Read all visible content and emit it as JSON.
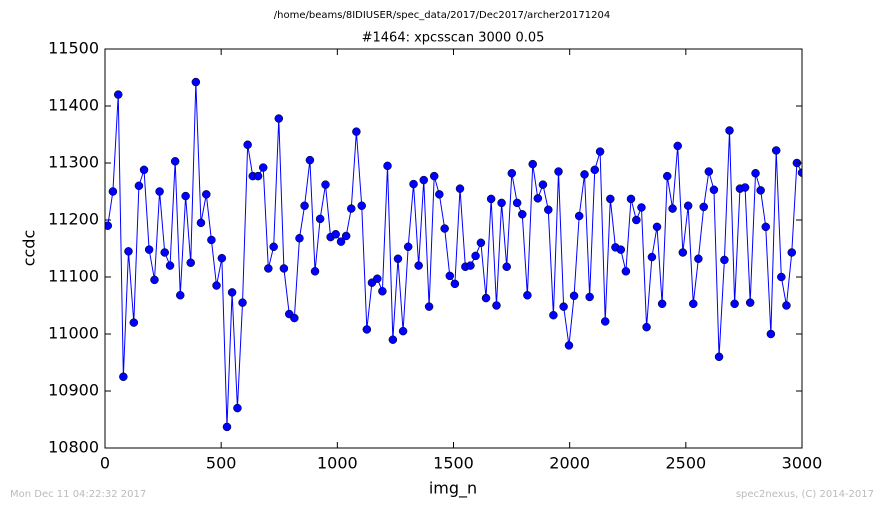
{
  "chart_data": {
    "type": "line",
    "suptitle": "/home/beams/8IDIUSER/spec_data/2017/Dec2017/archer20171204",
    "title": "#1464: xpcsscan 3000 0.05",
    "xlabel": "img_n",
    "ylabel": "ccdc",
    "footer_left": "Mon Dec 11 04:22:32 2017",
    "footer_right": "spec2nexus, (C) 2014-2017",
    "xlim": [
      0,
      3000
    ],
    "xticks": [
      0,
      500,
      1000,
      1500,
      2000,
      2500,
      3000
    ],
    "ylim": [
      10800,
      11500
    ],
    "yticks": [
      10800,
      10900,
      11000,
      11100,
      11200,
      11300,
      11400,
      11500
    ],
    "x": [
      12,
      34,
      57,
      79,
      101,
      124,
      146,
      168,
      190,
      213,
      235,
      257,
      280,
      302,
      324,
      347,
      369,
      391,
      413,
      436,
      458,
      480,
      503,
      525,
      547,
      570,
      592,
      614,
      636,
      659,
      681,
      703,
      726,
      748,
      770,
      793,
      815,
      837,
      859,
      882,
      904,
      926,
      949,
      971,
      993,
      1016,
      1038,
      1060,
      1082,
      1105,
      1127,
      1149,
      1172,
      1194,
      1216,
      1239,
      1261,
      1283,
      1305,
      1328,
      1350,
      1372,
      1395,
      1417,
      1439,
      1462,
      1484,
      1506,
      1528,
      1551,
      1573,
      1595,
      1618,
      1640,
      1662,
      1685,
      1707,
      1729,
      1751,
      1774,
      1796,
      1818,
      1841,
      1863,
      1885,
      1908,
      1930,
      1952,
      1974,
      1997,
      2019,
      2041,
      2064,
      2086,
      2108,
      2131,
      2153,
      2175,
      2197,
      2220,
      2242,
      2264,
      2287,
      2309,
      2331,
      2354,
      2376,
      2398,
      2420,
      2443,
      2465,
      2487,
      2510,
      2532,
      2554,
      2577,
      2599,
      2621,
      2643,
      2666,
      2688,
      2710,
      2733,
      2755,
      2777,
      2800,
      2822,
      2844,
      2866,
      2889,
      2911,
      2933,
      2956,
      2978,
      3000
    ],
    "series": [
      {
        "color": "#0000ff",
        "values": [
          11190,
          11250,
          11420,
          10925,
          11145,
          11020,
          11260,
          11288,
          11148,
          11095,
          11250,
          11143,
          11120,
          11303,
          11068,
          11242,
          11125,
          11442,
          11195,
          11245,
          11165,
          11085,
          11133,
          10837,
          11073,
          10870,
          11055,
          11332,
          11277,
          11277,
          11292,
          11115,
          11153,
          11378,
          11115,
          11035,
          11028,
          11168,
          11225,
          11305,
          11110,
          11202,
          11262,
          11170,
          11175,
          11162,
          11172,
          11220,
          11355,
          11225,
          11008,
          11090,
          11097,
          11075,
          11295,
          10990,
          11132,
          11005,
          11153,
          11263,
          11120,
          11270,
          11048,
          11277,
          11245,
          11185,
          11102,
          11088,
          11255,
          11118,
          11120,
          11137,
          11160,
          11063,
          11237,
          11050,
          11230,
          11118,
          11282,
          11230,
          11210,
          11068,
          11298,
          11238,
          11262,
          11218,
          11033,
          11285,
          11048,
          10980,
          11067,
          11207,
          11280,
          11065,
          11288,
          11320,
          11022,
          11237,
          11152,
          11148,
          11110,
          11237,
          11200,
          11222,
          11012,
          11135,
          11188,
          11053,
          11277,
          11220,
          11330,
          11143,
          11225,
          11053,
          11132,
          11223,
          11285,
          11253,
          10960,
          11130,
          11357,
          11053,
          11255,
          11257,
          11055,
          11282,
          11252,
          11188,
          11000,
          11322,
          11100,
          11050,
          11143,
          11300,
          11283
        ]
      }
    ]
  }
}
